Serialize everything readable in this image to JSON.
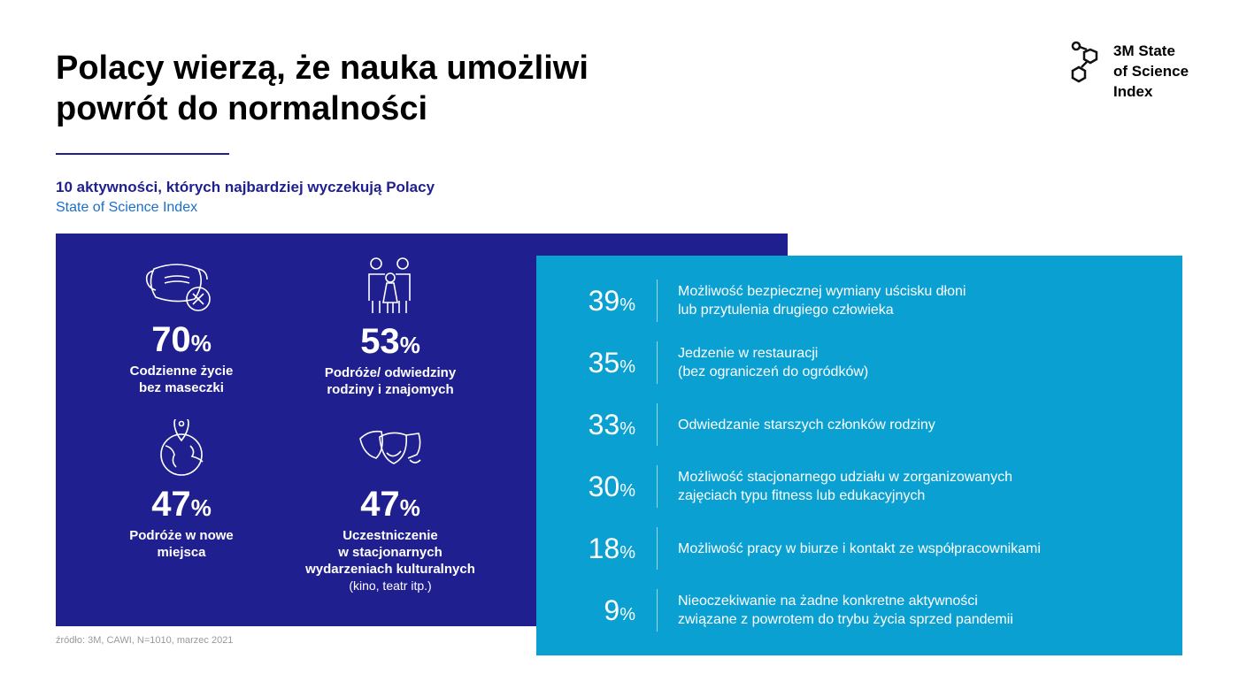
{
  "title": "Polacy wierzą, że nauka umożliwi powrót do normalności",
  "subtitle": "10 aktywności, których najbardziej wyczekują Polacy",
  "subtitle2": "State of Science Index",
  "logo": {
    "line1": "3M State",
    "line2": "of Science",
    "line3": "Index"
  },
  "highlights": [
    {
      "value": "70",
      "label1": "Codzienne życie",
      "label2": "bez maseczki",
      "icon": "mask-crossed-icon"
    },
    {
      "value": "53",
      "label1": "Podróże/ odwiedziny",
      "label2": "rodziny i znajomych",
      "icon": "family-icon"
    },
    {
      "value": "47",
      "label1": "Podróże w nowe",
      "label2": "miejsca",
      "icon": "globe-pin-icon"
    },
    {
      "value": "47",
      "label1": "Uczestniczenie",
      "label2": "w stacjonarnych",
      "label3": "wydarzeniach kulturalnych",
      "note": "(kino, teatr itp.)",
      "icon": "theatre-masks-icon"
    }
  ],
  "percent_sign": "%",
  "list": [
    {
      "value": "39",
      "line1": "Możliwość bezpiecznej wymiany uścisku dłoni",
      "line2": "lub przytulenia drugiego człowieka"
    },
    {
      "value": "35",
      "line1": "Jedzenie w restauracji",
      "line2": "(bez ograniczeń do ogródków)"
    },
    {
      "value": "33",
      "line1": "Odwiedzanie starszych członków rodziny"
    },
    {
      "value": "30",
      "line1": "Możliwość stacjonarnego udziału w zorganizowanych",
      "line2": "zajęciach typu fitness lub edukacyjnych"
    },
    {
      "value": "18",
      "line1": "Możliwość pracy w biurze i kontakt ze współpracownikami"
    },
    {
      "value": "9",
      "line1": "Nieoczekiwanie na żadne konkretne aktywności",
      "line2": "związane z powrotem do trybu życia sprzed pandemii"
    }
  ],
  "source": "źródło: 3M, CAWI, N=1010, marzec 2021",
  "colors": {
    "dark": "#1f1f8f",
    "light": "#0aa0d2"
  }
}
